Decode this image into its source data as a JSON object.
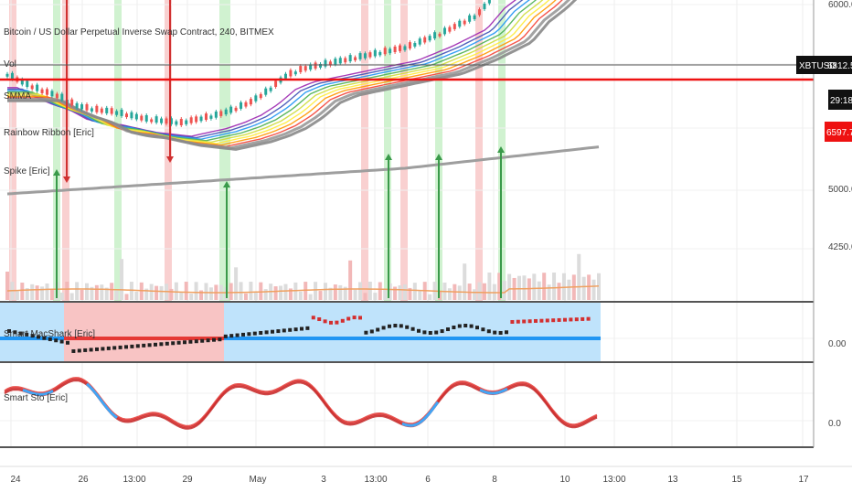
{
  "header": {
    "symbol_title": "Bitcoin / US Dollar Perpetual Inverse Swap Contract, 240, BITMEX"
  },
  "indicators": [
    "Vol",
    "SMMA",
    "Rainbow Ribbon [Eric]",
    "Spike [Eric]"
  ],
  "sub_panels": {
    "macd_title": "Smart MacShark [Eric]",
    "sto_title": "Smart Sto [Eric]"
  },
  "price_tags": {
    "symbol": "XBTUSD",
    "price": "6812.5",
    "countdown": "29:18",
    "red_level": "6597.7"
  },
  "colors": {
    "up": "#26a69a",
    "down": "#ef5350",
    "green_band": "#c8f0c8",
    "red_band": "#f8c8c8",
    "arrow_green": "#3a9a4a",
    "arrow_red": "#d03030",
    "macd_blue_bg": "#bfe3fb",
    "macd_red_bg": "#f8c4c4",
    "macd_zero": "#2196f3"
  },
  "chart_data": [
    {
      "type": "candlestick",
      "title": "Bitcoin / US Dollar Perpetual Inverse Swap Contract, 240, BITMEX",
      "x_tick_labels": [
        "24",
        "26",
        "13:00",
        "29",
        "May",
        "3",
        "13:00",
        "6",
        "8",
        "10",
        "13:00",
        "13",
        "15",
        "17"
      ],
      "y_tick_labels": [
        "6000.0",
        "5000.0",
        "4250.0"
      ],
      "ylim": [
        4100,
        6900
      ],
      "price": [
        5570,
        5520,
        5480,
        5450,
        5400,
        5380,
        5370,
        5350,
        5330,
        5320,
        5310,
        5330,
        5350,
        5380,
        5420,
        5480,
        5560,
        5600,
        5620,
        5640,
        5660,
        5680,
        5700,
        5720,
        5760,
        5800,
        5850,
        5900,
        6020,
        6100,
        6200,
        6350,
        6480,
        6600,
        6812.5
      ],
      "last_price": 6812.5,
      "red_level": 6597.7
    },
    {
      "type": "line",
      "title": "Smart MacShark [Eric]",
      "y_tick_labels": [
        "0.00"
      ]
    },
    {
      "type": "line",
      "title": "Smart Sto [Eric]",
      "y_tick_labels": [
        "0.0"
      ]
    }
  ]
}
